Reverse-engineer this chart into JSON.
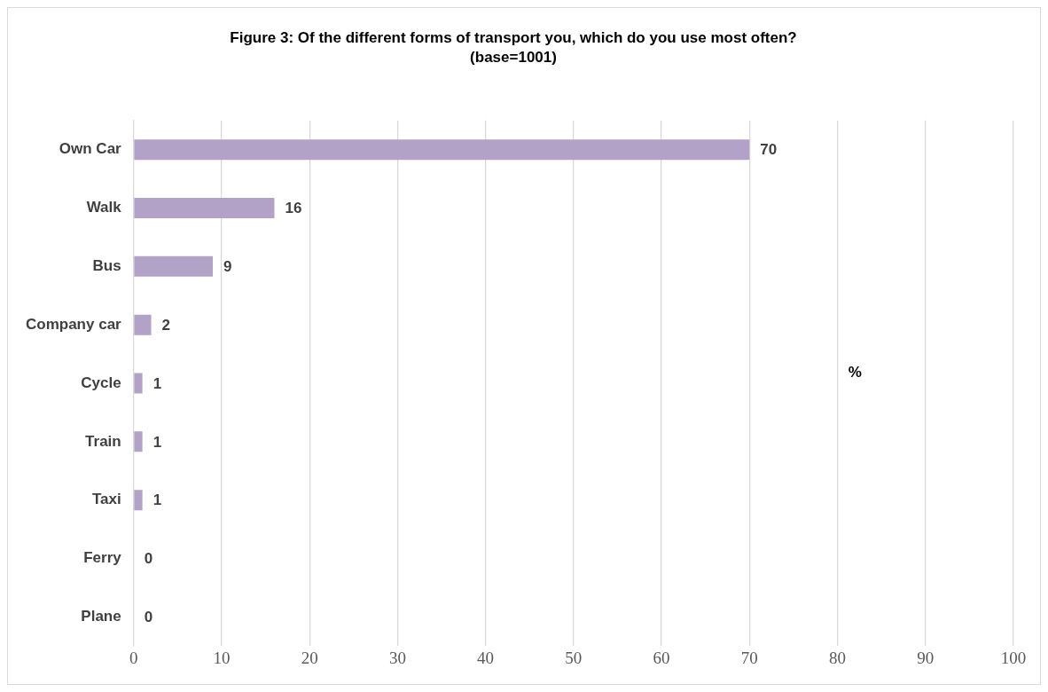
{
  "chart_data": {
    "type": "bar",
    "orientation": "horizontal",
    "title": "Figure 3: Of the different forms of transport you, which do you use most often?",
    "subtitle": "(base=1001)",
    "categories": [
      "Own Car",
      "Walk",
      "Bus",
      "Company car",
      "Cycle",
      "Train",
      "Taxi",
      "Ferry",
      "Plane"
    ],
    "values": [
      70,
      16,
      9,
      2,
      1,
      1,
      1,
      0,
      0
    ],
    "color": "#b3a2c7",
    "xlim": [
      0,
      100
    ],
    "xticks": [
      0,
      10,
      20,
      30,
      40,
      50,
      60,
      70,
      80,
      90,
      100
    ],
    "grid": "x",
    "data_labels": true,
    "legend": false,
    "annotations": [
      "%"
    ]
  }
}
